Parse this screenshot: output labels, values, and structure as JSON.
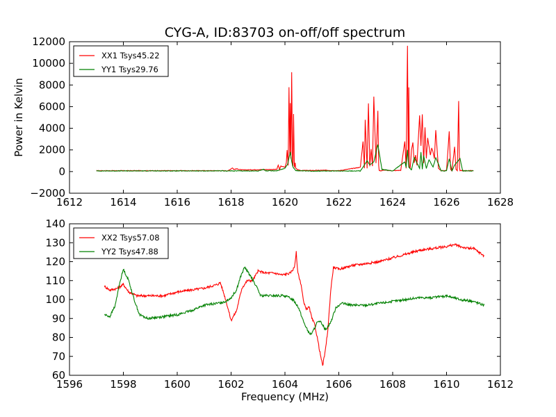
{
  "title": "CYG-A, ID:83703 on-off/off spectrum",
  "colors": {
    "red": "#ff0000",
    "green": "#008000",
    "axis": "#000000"
  },
  "chart_data": [
    {
      "type": "line",
      "ylabel": "Power in Kelvin",
      "xlabel": "",
      "xlim": [
        1612,
        1628
      ],
      "ylim": [
        -2000,
        12000
      ],
      "xticks": [
        1612,
        1614,
        1616,
        1618,
        1620,
        1622,
        1624,
        1626,
        1628
      ],
      "yticks": [
        -2000,
        0,
        2000,
        4000,
        6000,
        8000,
        10000,
        12000
      ],
      "legend_position": "top-left",
      "series": [
        {
          "name": "XX1 Tsys45.22",
          "color": "#ff0000",
          "x": [
            1613.0,
            1617.9,
            1618.05,
            1618.1,
            1618.2,
            1618.4,
            1619.7,
            1619.75,
            1619.8,
            1619.85,
            1620.0,
            1620.05,
            1620.08,
            1620.12,
            1620.15,
            1620.18,
            1620.2,
            1620.22,
            1620.25,
            1620.28,
            1620.3,
            1620.32,
            1620.35,
            1620.38,
            1620.4,
            1620.45,
            1620.5,
            1620.6,
            1621.0,
            1621.5,
            1622.0,
            1622.8,
            1622.9,
            1622.95,
            1622.98,
            1623.05,
            1623.1,
            1623.15,
            1623.2,
            1623.25,
            1623.3,
            1623.38,
            1623.45,
            1623.48,
            1623.5,
            1623.52,
            1623.55,
            1623.6,
            1623.7,
            1623.8,
            1624.0,
            1624.3,
            1624.45,
            1624.5,
            1624.55,
            1624.58,
            1624.6,
            1624.62,
            1624.65,
            1624.7,
            1624.75,
            1624.8,
            1624.85,
            1624.9,
            1625.0,
            1625.05,
            1625.1,
            1625.15,
            1625.2,
            1625.25,
            1625.3,
            1625.4,
            1625.45,
            1625.5,
            1625.55,
            1625.6,
            1625.7,
            1625.8,
            1625.9,
            1626.0,
            1626.1,
            1626.15,
            1626.2,
            1626.3,
            1626.35,
            1626.4,
            1626.45,
            1626.48,
            1626.5,
            1626.55,
            1626.6,
            1627.0
          ],
          "y": [
            80,
            80,
            350,
            200,
            250,
            150,
            200,
            600,
            200,
            500,
            400,
            800,
            2000,
            600,
            7800,
            1500,
            6300,
            1200,
            9200,
            800,
            500,
            5300,
            400,
            800,
            300,
            200,
            150,
            100,
            100,
            120,
            80,
            400,
            2800,
            300,
            4800,
            300,
            6300,
            500,
            2100,
            500,
            6900,
            800,
            5600,
            600,
            100,
            80,
            80,
            80,
            150,
            100,
            80,
            120,
            2800,
            300,
            11600,
            900,
            7800,
            400,
            300,
            2000,
            2700,
            800,
            1500,
            600,
            5200,
            2400,
            5300,
            800,
            4100,
            1200,
            3100,
            1500,
            2200,
            1800,
            1200,
            3800,
            300,
            80,
            80,
            120,
            3700,
            200,
            80,
            2300,
            200,
            80,
            6500,
            400,
            80,
            80,
            80,
            80
          ]
        },
        {
          "name": "YY1 Tsys29.76",
          "color": "#008000",
          "x": [
            1613.0,
            1619.0,
            1619.2,
            1619.3,
            1619.7,
            1620.0,
            1620.1,
            1620.2,
            1620.25,
            1620.3,
            1620.4,
            1620.6,
            1621.0,
            1622.8,
            1622.95,
            1623.05,
            1623.15,
            1623.3,
            1623.45,
            1623.6,
            1624.0,
            1624.45,
            1624.5,
            1624.55,
            1624.6,
            1624.7,
            1624.8,
            1624.9,
            1625.0,
            1625.05,
            1625.1,
            1625.15,
            1625.25,
            1625.35,
            1625.5,
            1625.6,
            1625.8,
            1626.0,
            1626.1,
            1626.2,
            1626.3,
            1626.5,
            1626.6,
            1627.0
          ],
          "y": [
            60,
            60,
            200,
            60,
            80,
            300,
            700,
            1800,
            900,
            400,
            100,
            60,
            50,
            60,
            600,
            1000,
            600,
            900,
            2500,
            200,
            60,
            900,
            400,
            2000,
            400,
            150,
            1300,
            800,
            300,
            1800,
            200,
            1500,
            300,
            1100,
            400,
            1300,
            60,
            60,
            1200,
            60,
            600,
            1200,
            60,
            60
          ]
        }
      ]
    },
    {
      "type": "line",
      "xlabel": "Frequency (MHz)",
      "ylabel": "",
      "xlim": [
        1596,
        1612
      ],
      "ylim": [
        60,
        140
      ],
      "xticks": [
        1596,
        1598,
        1600,
        1602,
        1604,
        1606,
        1608,
        1610,
        1612
      ],
      "yticks": [
        60,
        70,
        80,
        90,
        100,
        110,
        120,
        130,
        140
      ],
      "legend_position": "top-left",
      "series": [
        {
          "name": "XX2 Tsys57.08",
          "color": "#ff0000",
          "x": [
            1597.3,
            1597.5,
            1597.8,
            1598.0,
            1598.2,
            1598.5,
            1599.0,
            1599.5,
            1600.0,
            1600.5,
            1601.0,
            1601.5,
            1601.6,
            1601.8,
            1602.0,
            1602.2,
            1602.4,
            1602.6,
            1602.8,
            1603.0,
            1603.3,
            1603.6,
            1603.9,
            1604.2,
            1604.35,
            1604.42,
            1604.45,
            1604.5,
            1604.6,
            1604.7,
            1604.8,
            1604.9,
            1605.0,
            1605.1,
            1605.2,
            1605.3,
            1605.4,
            1605.5,
            1605.6,
            1605.7,
            1605.8,
            1606.0,
            1606.5,
            1607.0,
            1607.5,
            1608.0,
            1608.5,
            1609.0,
            1609.5,
            1610.0,
            1610.3,
            1610.5,
            1610.8,
            1611.0,
            1611.2,
            1611.4
          ],
          "y": [
            107,
            105,
            106,
            108,
            104,
            102,
            102,
            102,
            104,
            105,
            106,
            108,
            109,
            100,
            89,
            94,
            106,
            110,
            110,
            115,
            114,
            114,
            113,
            114,
            117,
            125,
            118,
            113,
            108,
            98,
            95,
            96,
            90,
            87,
            80,
            72,
            65,
            73,
            85,
            105,
            117,
            116,
            118,
            119,
            120,
            122,
            124,
            126,
            127,
            128,
            129,
            128,
            127,
            127,
            125,
            123
          ]
        },
        {
          "name": "YY2 Tsys47.88",
          "color": "#008000",
          "x": [
            1597.3,
            1597.5,
            1597.7,
            1597.85,
            1598.0,
            1598.2,
            1598.4,
            1598.6,
            1598.9,
            1599.5,
            1600.0,
            1600.5,
            1601.0,
            1601.5,
            1601.8,
            1602.0,
            1602.2,
            1602.35,
            1602.5,
            1602.7,
            1602.9,
            1603.1,
            1603.5,
            1604.0,
            1604.3,
            1604.5,
            1604.7,
            1604.9,
            1605.0,
            1605.2,
            1605.35,
            1605.5,
            1605.7,
            1605.9,
            1606.1,
            1606.5,
            1607.0,
            1607.5,
            1608.0,
            1608.5,
            1609.0,
            1609.5,
            1610.0,
            1610.5,
            1611.0,
            1611.4
          ],
          "y": [
            92,
            91,
            97,
            108,
            116,
            110,
            100,
            92,
            90,
            91,
            92,
            94,
            97,
            98,
            99,
            101,
            105,
            112,
            117,
            113,
            108,
            102,
            102,
            102,
            100,
            96,
            88,
            82,
            82,
            88,
            88,
            84,
            88,
            96,
            98,
            97,
            97,
            98,
            99,
            100,
            101,
            101,
            102,
            100,
            99,
            97
          ]
        }
      ]
    }
  ]
}
